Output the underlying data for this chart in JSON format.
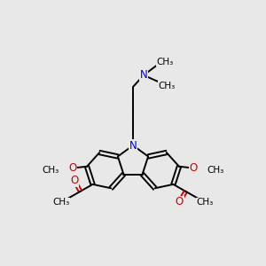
{
  "bg_color": "#e8e8e8",
  "bond_color": "#000000",
  "N_color": "#0000cc",
  "O_color": "#cc0000",
  "lw": 1.4,
  "fs": 8.5
}
